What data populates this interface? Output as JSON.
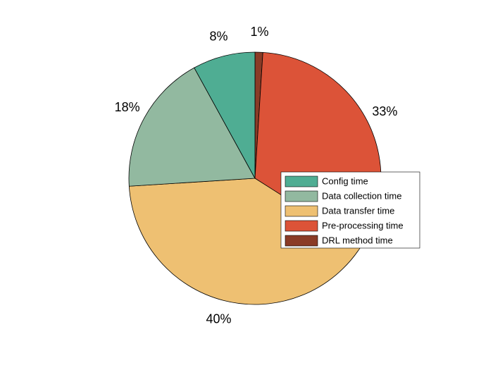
{
  "chart_data": {
    "type": "pie",
    "title": "",
    "slices": [
      {
        "label": "Config time",
        "value": 8,
        "text": "8%",
        "color": "#4fad93"
      },
      {
        "label": "Data collection time",
        "value": 18,
        "text": "18%",
        "color": "#92b9a0"
      },
      {
        "label": "Data transfer time",
        "value": 40,
        "text": "40%",
        "color": "#eec072"
      },
      {
        "label": "Pre-processing time",
        "value": 33,
        "text": "33%",
        "color": "#dc5338"
      },
      {
        "label": "DRL method time",
        "value": 1,
        "text": "1%",
        "color": "#8a3b26"
      }
    ],
    "start_angle_deg": 90,
    "direction": "counterclockwise",
    "legend_position": "right"
  }
}
